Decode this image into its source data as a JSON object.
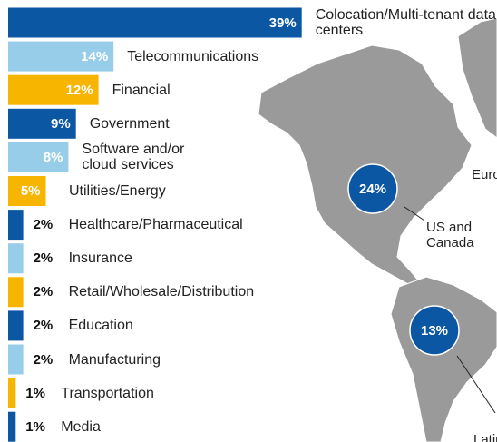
{
  "chart_data": {
    "type": "bar",
    "orientation": "horizontal",
    "categories": [
      "Colocation/Multi-tenant data centers",
      "Telecommunications",
      "Financial",
      "Government",
      "Software and/or cloud services",
      "Utilities/Energy",
      "Healthcare/Pharmaceutical",
      "Insurance",
      "Retail/Wholesale/Distribution",
      "Education",
      "Manufacturing",
      "Transportation",
      "Media"
    ],
    "values": [
      39,
      14,
      12,
      9,
      8,
      5,
      2,
      2,
      2,
      2,
      2,
      1,
      1
    ],
    "value_labels": [
      "39%",
      "14%",
      "12%",
      "9%",
      "8%",
      "5%",
      "2%",
      "2%",
      "2%",
      "2%",
      "2%",
      "1%",
      "1%"
    ],
    "colors": [
      "#0b57a4",
      "#97cde9",
      "#f7b500",
      "#0b57a4",
      "#97cde9",
      "#f7b500",
      "#0b57a4",
      "#97cde9",
      "#f7b500",
      "#0b57a4",
      "#97cde9",
      "#f7b500",
      "#0b57a4"
    ]
  },
  "map": {
    "regions": [
      {
        "name": "US and Canada",
        "value": 24,
        "label": "24%"
      },
      {
        "name": "Latin America",
        "value": 13,
        "label": "13%"
      },
      {
        "name": "Europe"
      }
    ]
  }
}
